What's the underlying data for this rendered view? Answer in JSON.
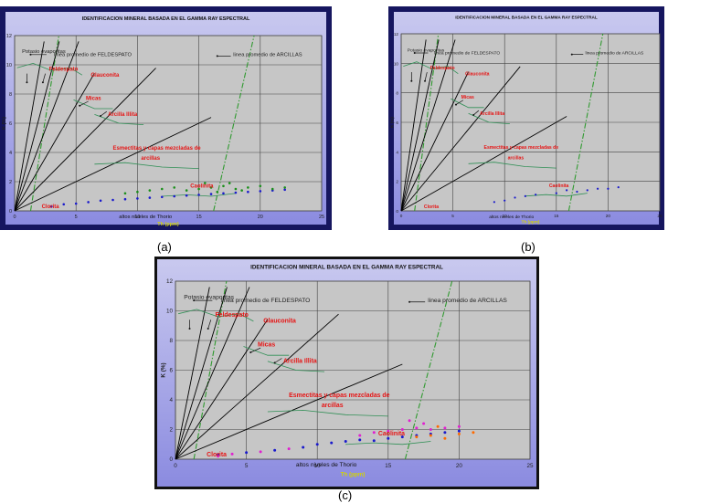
{
  "captions": {
    "a": "(a)",
    "b": "(b)",
    "c": "(c)"
  },
  "chart_data": [
    {
      "id": "a",
      "type": "scatter",
      "title": "IDENTIFICACION MINERAL BASADA EN EL GAMMA RAY ESPECTRAL",
      "xlabel": "Th (ppm)",
      "ylabel": "K (%)",
      "xlim": [
        0,
        25
      ],
      "ylim": [
        0,
        12
      ],
      "xticks": [
        "0",
        "5",
        "10",
        "15",
        "20",
        "25"
      ],
      "yticks": [
        "0",
        "2",
        "4",
        "6",
        "8",
        "10",
        "12"
      ],
      "grid": true,
      "colors": {
        "frame": "#16165f",
        "plot_bg": "#c6c6c6",
        "dashed": "#2f9a2f",
        "curve": "#2f8f55",
        "red_text": "#e61515"
      },
      "ray_slopes": [
        5.0,
        3.3,
        2.3,
        1.45,
        0.85,
        0.4
      ],
      "lines": [
        {
          "name": "linea promedio de FELDESPATO",
          "x": [
            1.3,
            3.6
          ],
          "y": [
            0,
            12
          ]
        },
        {
          "name": "linea promedio de ARCILLAS",
          "x": [
            16.2,
            19.5
          ],
          "y": [
            0,
            12
          ]
        }
      ],
      "labels": [
        {
          "text": "Potasio evaporitas",
          "x": 0.6,
          "y": 10.8,
          "color": "#222222"
        },
        {
          "text": "linea promedio de FELDESPATO",
          "x": 3.2,
          "y": 10.6,
          "color": "#222222"
        },
        {
          "text": "linea promedio de ARCILLAS",
          "x": 17.8,
          "y": 10.6,
          "color": "#222222"
        },
        {
          "text": "Feldespato",
          "x": 2.8,
          "y": 9.6,
          "color": "#e61515"
        },
        {
          "text": "Glauconita",
          "x": 6.2,
          "y": 9.2,
          "color": "#e61515"
        },
        {
          "text": "Micas",
          "x": 5.8,
          "y": 7.6,
          "color": "#e61515"
        },
        {
          "text": "Arcilla Illita",
          "x": 7.6,
          "y": 6.5,
          "color": "#e61515"
        },
        {
          "text": "Esmectitas y capas mezcladas de",
          "x": 8.0,
          "y": 4.2,
          "color": "#e61515"
        },
        {
          "text": "arcillas",
          "x": 10.3,
          "y": 3.5,
          "color": "#e61515"
        },
        {
          "text": "Caolinita",
          "x": 14.3,
          "y": 1.6,
          "color": "#e61515"
        },
        {
          "text": "Clorita",
          "x": 2.2,
          "y": 0.2,
          "color": "#e61515"
        },
        {
          "text": "altos niveles de Thorio",
          "x": 8.5,
          "y": -0.5,
          "color": "#111111"
        }
      ],
      "series": [
        {
          "color": "#1a1acc",
          "points": [
            [
              3,
              0.3
            ],
            [
              4,
              0.45
            ],
            [
              5,
              0.5
            ],
            [
              6,
              0.6
            ],
            [
              7,
              0.7
            ],
            [
              8,
              0.75
            ],
            [
              9,
              0.8
            ],
            [
              10,
              0.85
            ],
            [
              11,
              0.9
            ],
            [
              12,
              0.95
            ],
            [
              13,
              1.0
            ],
            [
              14,
              1.05
            ],
            [
              15,
              1.1
            ],
            [
              16,
              1.15
            ],
            [
              17,
              1.2
            ],
            [
              18,
              1.25
            ],
            [
              19,
              1.3
            ],
            [
              20,
              1.35
            ],
            [
              21,
              1.4
            ],
            [
              22,
              1.45
            ]
          ]
        },
        {
          "color": "#1a8f1a",
          "points": [
            [
              9,
              1.2
            ],
            [
              10,
              1.3
            ],
            [
              11,
              1.4
            ],
            [
              12,
              1.5
            ],
            [
              13,
              1.6
            ],
            [
              14,
              1.4
            ],
            [
              15,
              1.5
            ],
            [
              16,
              1.6
            ],
            [
              17,
              1.7
            ],
            [
              18,
              1.5
            ],
            [
              19,
              1.6
            ],
            [
              20,
              1.7
            ],
            [
              21,
              1.5
            ],
            [
              22,
              1.6
            ],
            [
              15.5,
              1.9
            ],
            [
              16.5,
              1.3
            ],
            [
              17.5,
              1.9
            ],
            [
              18.5,
              1.4
            ]
          ]
        }
      ]
    },
    {
      "id": "b",
      "type": "scatter",
      "title": "IDENTIFICACION MINERAL BASADA EN EL GAMMA RAY ESPECTRAL",
      "xlabel": "Th (ppm)",
      "ylabel": "K (%)",
      "xlim": [
        0,
        25
      ],
      "ylim": [
        0,
        12
      ],
      "xticks": [
        "0",
        "5",
        "10",
        "15",
        "20",
        "25"
      ],
      "yticks": [
        "0",
        "2",
        "4",
        "6",
        "8",
        "10",
        "12"
      ],
      "grid": true,
      "colors": {
        "frame": "#16165f",
        "plot_bg": "#c6c6c6",
        "dashed": "#2f9a2f",
        "curve": "#2f8f55",
        "red_text": "#e61515"
      },
      "ray_slopes": [
        5.0,
        3.3,
        2.3,
        1.45,
        0.85,
        0.4
      ],
      "lines": [
        {
          "name": "linea promedio de FELDESPATO",
          "x": [
            1.3,
            3.6
          ],
          "y": [
            0,
            12
          ]
        },
        {
          "name": "linea promedio de ARCILLAS",
          "x": [
            16.2,
            19.5
          ],
          "y": [
            0,
            12
          ]
        }
      ],
      "labels": [
        {
          "text": "Potasio evaporitas",
          "x": 0.6,
          "y": 10.8,
          "color": "#222222"
        },
        {
          "text": "linea promedio de FELDESPATO",
          "x": 3.2,
          "y": 10.6,
          "color": "#222222"
        },
        {
          "text": "linea promedio de ARCILLAS",
          "x": 17.8,
          "y": 10.6,
          "color": "#222222"
        },
        {
          "text": "Feldespato",
          "x": 2.8,
          "y": 9.6,
          "color": "#e61515"
        },
        {
          "text": "Glauconita",
          "x": 6.2,
          "y": 9.2,
          "color": "#e61515"
        },
        {
          "text": "Micas",
          "x": 5.8,
          "y": 7.6,
          "color": "#e61515"
        },
        {
          "text": "Arcilla Illita",
          "x": 7.6,
          "y": 6.5,
          "color": "#e61515"
        },
        {
          "text": "Esmectitas y capas mezcladas de",
          "x": 8.0,
          "y": 4.2,
          "color": "#e61515"
        },
        {
          "text": "arcillas",
          "x": 10.3,
          "y": 3.5,
          "color": "#e61515"
        },
        {
          "text": "Caolinita",
          "x": 14.3,
          "y": 1.6,
          "color": "#e61515"
        },
        {
          "text": "Clorita",
          "x": 2.2,
          "y": 0.2,
          "color": "#e61515"
        },
        {
          "text": "altos niveles de Thorio",
          "x": 8.5,
          "y": -0.5,
          "color": "#111111"
        }
      ],
      "series": [
        {
          "color": "#1a1acc",
          "points": [
            [
              9,
              0.6
            ],
            [
              10,
              0.7
            ],
            [
              11,
              0.9
            ],
            [
              12,
              1.0
            ],
            [
              13,
              1.1
            ],
            [
              15,
              1.2
            ],
            [
              16,
              1.4
            ],
            [
              17,
              1.3
            ],
            [
              18,
              1.4
            ],
            [
              19,
              1.5
            ],
            [
              20,
              1.5
            ],
            [
              21,
              1.6
            ]
          ]
        }
      ]
    },
    {
      "id": "c",
      "type": "scatter",
      "title": "IDENTIFICACION MINERAL BASADA EN EL GAMMA RAY ESPECTRAL",
      "xlabel": "Th (ppm)",
      "ylabel": "K (%)",
      "xlim": [
        0,
        25
      ],
      "ylim": [
        0,
        12
      ],
      "xticks": [
        "0",
        "5",
        "10",
        "15",
        "20",
        "25"
      ],
      "yticks": [
        "0",
        "2",
        "4",
        "6",
        "8",
        "10",
        "12"
      ],
      "grid": true,
      "colors": {
        "frame": "#111111",
        "plot_bg": "#c6c6c6",
        "dashed": "#2f9a2f",
        "curve": "#2f8f55",
        "red_text": "#e61515"
      },
      "ray_slopes": [
        5.0,
        3.3,
        2.3,
        1.45,
        0.85,
        0.4
      ],
      "lines": [
        {
          "name": "linea promedio de FELDESPATO",
          "x": [
            1.3,
            3.6
          ],
          "y": [
            0,
            12
          ]
        },
        {
          "name": "linea promedio de ARCILLAS",
          "x": [
            16.2,
            19.5
          ],
          "y": [
            0,
            12
          ]
        }
      ],
      "labels": [
        {
          "text": "Potasio evaporitas",
          "x": 0.6,
          "y": 10.8,
          "color": "#222222"
        },
        {
          "text": "linea promedio de FELDESPATO",
          "x": 3.2,
          "y": 10.6,
          "color": "#222222"
        },
        {
          "text": "linea promedio de ARCILLAS",
          "x": 17.8,
          "y": 10.6,
          "color": "#222222"
        },
        {
          "text": "Feldespato",
          "x": 2.8,
          "y": 9.6,
          "color": "#e61515"
        },
        {
          "text": "Glauconita",
          "x": 6.2,
          "y": 9.2,
          "color": "#e61515"
        },
        {
          "text": "Micas",
          "x": 5.8,
          "y": 7.6,
          "color": "#e61515"
        },
        {
          "text": "Arcilla Illita",
          "x": 7.6,
          "y": 6.5,
          "color": "#e61515"
        },
        {
          "text": "Esmectitas y capas mezcladas de",
          "x": 8.0,
          "y": 4.2,
          "color": "#e61515"
        },
        {
          "text": "arcillas",
          "x": 10.3,
          "y": 3.5,
          "color": "#e61515"
        },
        {
          "text": "Caolinita",
          "x": 14.3,
          "y": 1.6,
          "color": "#e61515"
        },
        {
          "text": "Clorita",
          "x": 2.2,
          "y": 0.2,
          "color": "#e61515"
        },
        {
          "text": "altos niveles de Thorio",
          "x": 8.5,
          "y": -0.5,
          "color": "#111111"
        }
      ],
      "series": [
        {
          "color": "#1a1acc",
          "points": [
            [
              3,
              0.3
            ],
            [
              5,
              0.45
            ],
            [
              7,
              0.6
            ],
            [
              9,
              0.8
            ],
            [
              10,
              1.0
            ],
            [
              11,
              1.1
            ],
            [
              12,
              1.2
            ],
            [
              13,
              1.3
            ],
            [
              14,
              1.25
            ],
            [
              15,
              1.4
            ],
            [
              16,
              1.5
            ],
            [
              17,
              1.6
            ],
            [
              18,
              1.7
            ],
            [
              19,
              1.8
            ],
            [
              20,
              1.9
            ]
          ]
        },
        {
          "color": "#e020d0",
          "points": [
            [
              3,
              0.2
            ],
            [
              4,
              0.35
            ],
            [
              6,
              0.5
            ],
            [
              8,
              0.7
            ],
            [
              13,
              1.6
            ],
            [
              14,
              1.8
            ],
            [
              15,
              1.9
            ],
            [
              16,
              2.0
            ],
            [
              17,
              2.1
            ],
            [
              18,
              2.0
            ],
            [
              19,
              2.1
            ],
            [
              20,
              2.2
            ],
            [
              16.5,
              2.6
            ],
            [
              17.5,
              2.4
            ]
          ]
        },
        {
          "color": "#ff6a00",
          "points": [
            [
              17,
              1.5
            ],
            [
              18,
              1.6
            ],
            [
              19,
              1.4
            ],
            [
              20,
              1.7
            ],
            [
              21,
              1.8
            ],
            [
              18.5,
              2.2
            ]
          ]
        }
      ]
    }
  ]
}
